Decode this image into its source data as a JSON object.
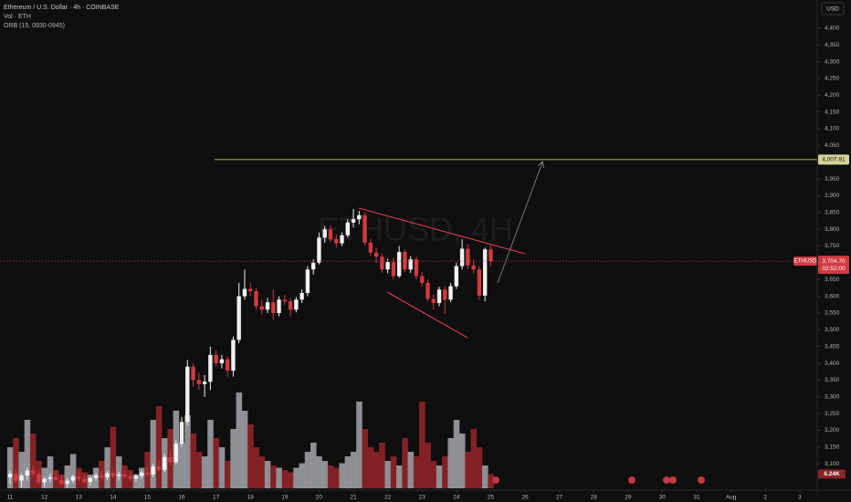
{
  "chart_data": {
    "type": "candlestick",
    "title": "Ethereum / U.S. Dollar · 4h · COINBASE",
    "indicators": [
      "Vol · ETH",
      "ORB (15, 0930-0945)"
    ],
    "watermark": "ETHUSD, 4H",
    "currency": "USD",
    "up_color": "#f0f0f0",
    "down_color": "#d03b40",
    "volume_up_color": "#a3a6ad",
    "volume_down_color": "#8a2428",
    "ylim": [
      3027,
      4484
    ],
    "yticks": [
      {
        "value": 3100,
        "label": "3,100"
      },
      {
        "value": 3150,
        "label": "3,150"
      },
      {
        "value": 3200,
        "label": "3,200"
      },
      {
        "value": 3250,
        "label": "3,250"
      },
      {
        "value": 3300,
        "label": "3,300"
      },
      {
        "value": 3350,
        "label": "3,350"
      },
      {
        "value": 3400,
        "label": "3,400"
      },
      {
        "value": 3450,
        "label": "3,450"
      },
      {
        "value": 3500,
        "label": "3,500"
      },
      {
        "value": 3550,
        "label": "3,550"
      },
      {
        "value": 3600,
        "label": "3,600"
      },
      {
        "value": 3650,
        "label": "3,650"
      },
      {
        "value": 3700,
        "label": "3,700"
      },
      {
        "value": 3750,
        "label": "3,750"
      },
      {
        "value": 3800,
        "label": "3,800"
      },
      {
        "value": 3850,
        "label": "3,850"
      },
      {
        "value": 3900,
        "label": "3,900"
      },
      {
        "value": 3950,
        "label": "3,950"
      },
      {
        "value": 4000,
        "label": "4,000"
      },
      {
        "value": 4050,
        "label": "4,050"
      },
      {
        "value": 4100,
        "label": "4,100"
      },
      {
        "value": 4150,
        "label": "4,150"
      },
      {
        "value": 4200,
        "label": "4,200"
      },
      {
        "value": 4250,
        "label": "4,250"
      },
      {
        "value": 4300,
        "label": "4,300"
      },
      {
        "value": 4350,
        "label": "4,350"
      },
      {
        "value": 4400,
        "label": "4,400"
      }
    ],
    "xlim": [
      -1.76,
      141.06
    ],
    "xticks": [
      {
        "value": 0,
        "label": "11"
      },
      {
        "value": 6,
        "label": "12"
      },
      {
        "value": 12,
        "label": "13"
      },
      {
        "value": 18,
        "label": "14"
      },
      {
        "value": 24,
        "label": "15"
      },
      {
        "value": 30,
        "label": "16"
      },
      {
        "value": 36,
        "label": "17"
      },
      {
        "value": 42,
        "label": "18"
      },
      {
        "value": 48,
        "label": "19"
      },
      {
        "value": 54,
        "label": "20"
      },
      {
        "value": 60,
        "label": "21"
      },
      {
        "value": 66,
        "label": "22"
      },
      {
        "value": 72,
        "label": "23"
      },
      {
        "value": 78,
        "label": "24"
      },
      {
        "value": 84,
        "label": "25"
      },
      {
        "value": 90,
        "label": "26"
      },
      {
        "value": 96,
        "label": "27"
      },
      {
        "value": 102,
        "label": "28"
      },
      {
        "value": 108,
        "label": "29"
      },
      {
        "value": 114,
        "label": "30"
      },
      {
        "value": 120,
        "label": "31"
      },
      {
        "value": 126,
        "label": "Aug"
      },
      {
        "value": 132,
        "label": "2"
      },
      {
        "value": 138,
        "label": "3"
      }
    ],
    "open": [
      3060,
      3070,
      3050,
      3065,
      3080,
      3070,
      3045,
      3055,
      3060,
      3052,
      3040,
      3050,
      3062,
      3055,
      3046,
      3058,
      3066,
      3060,
      3072,
      3064,
      3068,
      3062,
      3056,
      3064,
      3074,
      3068,
      3092,
      3082,
      3120,
      3105,
      3160,
      3225,
      3390,
      3350,
      3338,
      3345,
      3425,
      3400,
      3412,
      3378,
      3470,
      3600,
      3622,
      3615,
      3570,
      3560,
      3582,
      3550,
      3590,
      3585,
      3560,
      3590,
      3610,
      3680,
      3700,
      3775,
      3800,
      3770,
      3758,
      3782,
      3820,
      3830,
      3842,
      3760,
      3730,
      3718,
      3680,
      3702,
      3660,
      3732,
      3680,
      3710,
      3660,
      3640,
      3592,
      3580,
      3620,
      3590,
      3630,
      3690,
      3742,
      3692,
      3680,
      3602,
      3740
    ],
    "high": [
      3080,
      3085,
      3070,
      3090,
      3095,
      3080,
      3060,
      3070,
      3075,
      3065,
      3058,
      3068,
      3075,
      3066,
      3060,
      3072,
      3080,
      3078,
      3085,
      3076,
      3082,
      3074,
      3070,
      3080,
      3090,
      3100,
      3110,
      3130,
      3140,
      3170,
      3240,
      3410,
      3400,
      3372,
      3365,
      3450,
      3440,
      3425,
      3420,
      3480,
      3640,
      3680,
      3640,
      3625,
      3590,
      3595,
      3620,
      3600,
      3605,
      3595,
      3598,
      3620,
      3690,
      3710,
      3790,
      3810,
      3812,
      3785,
      3790,
      3830,
      3860,
      3855,
      3850,
      3772,
      3745,
      3728,
      3712,
      3715,
      3750,
      3740,
      3720,
      3718,
      3672,
      3650,
      3605,
      3628,
      3630,
      3640,
      3700,
      3770,
      3755,
      3710,
      3690,
      3745,
      3752
    ],
    "low": [
      3040,
      3045,
      3030,
      3050,
      3060,
      3040,
      3030,
      3045,
      3050,
      3035,
      3030,
      3042,
      3048,
      3040,
      3035,
      3050,
      3055,
      3052,
      3058,
      3050,
      3058,
      3048,
      3046,
      3056,
      3062,
      3060,
      3076,
      3075,
      3095,
      3098,
      3150,
      3215,
      3330,
      3320,
      3300,
      3320,
      3390,
      3385,
      3360,
      3360,
      3460,
      3590,
      3600,
      3560,
      3545,
      3550,
      3530,
      3540,
      3575,
      3540,
      3552,
      3580,
      3600,
      3665,
      3695,
      3760,
      3762,
      3745,
      3750,
      3775,
      3805,
      3815,
      3750,
      3720,
      3700,
      3670,
      3668,
      3650,
      3655,
      3672,
      3670,
      3650,
      3630,
      3585,
      3560,
      3570,
      3548,
      3582,
      3622,
      3680,
      3680,
      3668,
      3590,
      3585,
      3688
    ],
    "close": [
      3070,
      3050,
      3065,
      3080,
      3070,
      3045,
      3055,
      3060,
      3052,
      3040,
      3050,
      3062,
      3055,
      3046,
      3058,
      3066,
      3060,
      3072,
      3064,
      3068,
      3062,
      3056,
      3064,
      3074,
      3068,
      3092,
      3082,
      3120,
      3105,
      3160,
      3225,
      3390,
      3350,
      3338,
      3345,
      3425,
      3400,
      3412,
      3378,
      3470,
      3600,
      3622,
      3615,
      3570,
      3560,
      3582,
      3550,
      3590,
      3585,
      3560,
      3590,
      3610,
      3680,
      3700,
      3775,
      3800,
      3770,
      3758,
      3782,
      3820,
      3830,
      3842,
      3760,
      3730,
      3718,
      3680,
      3702,
      3660,
      3732,
      3680,
      3710,
      3660,
      3640,
      3592,
      3580,
      3620,
      3590,
      3630,
      3690,
      3742,
      3692,
      3680,
      3602,
      3740,
      3704.7
    ],
    "volume": [
      18000,
      22000,
      16000,
      30000,
      24000,
      12000,
      9000,
      14000,
      8000,
      6000,
      10000,
      15000,
      9000,
      7000,
      6000,
      9000,
      12000,
      18000,
      27000,
      14000,
      10000,
      8000,
      6000,
      9000,
      16000,
      30000,
      36000,
      22000,
      26000,
      34000,
      20000,
      32000,
      24000,
      16000,
      14000,
      30000,
      22000,
      18000,
      12000,
      26000,
      42000,
      34000,
      28000,
      18000,
      14000,
      12000,
      10000,
      9000,
      8000,
      7000,
      9000,
      11000,
      16000,
      20000,
      14000,
      12000,
      10000,
      9000,
      11000,
      14000,
      16000,
      38000,
      26000,
      18000,
      16000,
      20000,
      12000,
      14000,
      10000,
      22000,
      16000,
      14000,
      38000,
      20000,
      12000,
      10000,
      14000,
      22000,
      30000,
      24000,
      16000,
      26000,
      18000,
      10000,
      6240
    ],
    "current_price": {
      "value": 3704.7,
      "label": "3,704.70",
      "symbol": "ETHUSD",
      "countdown": "02:52:00"
    },
    "current_volume": {
      "value": 6240,
      "label": "6.24K"
    },
    "target_line": {
      "value": 4007.91,
      "label": "4,007.91",
      "color": "#a7a45a"
    }
  }
}
